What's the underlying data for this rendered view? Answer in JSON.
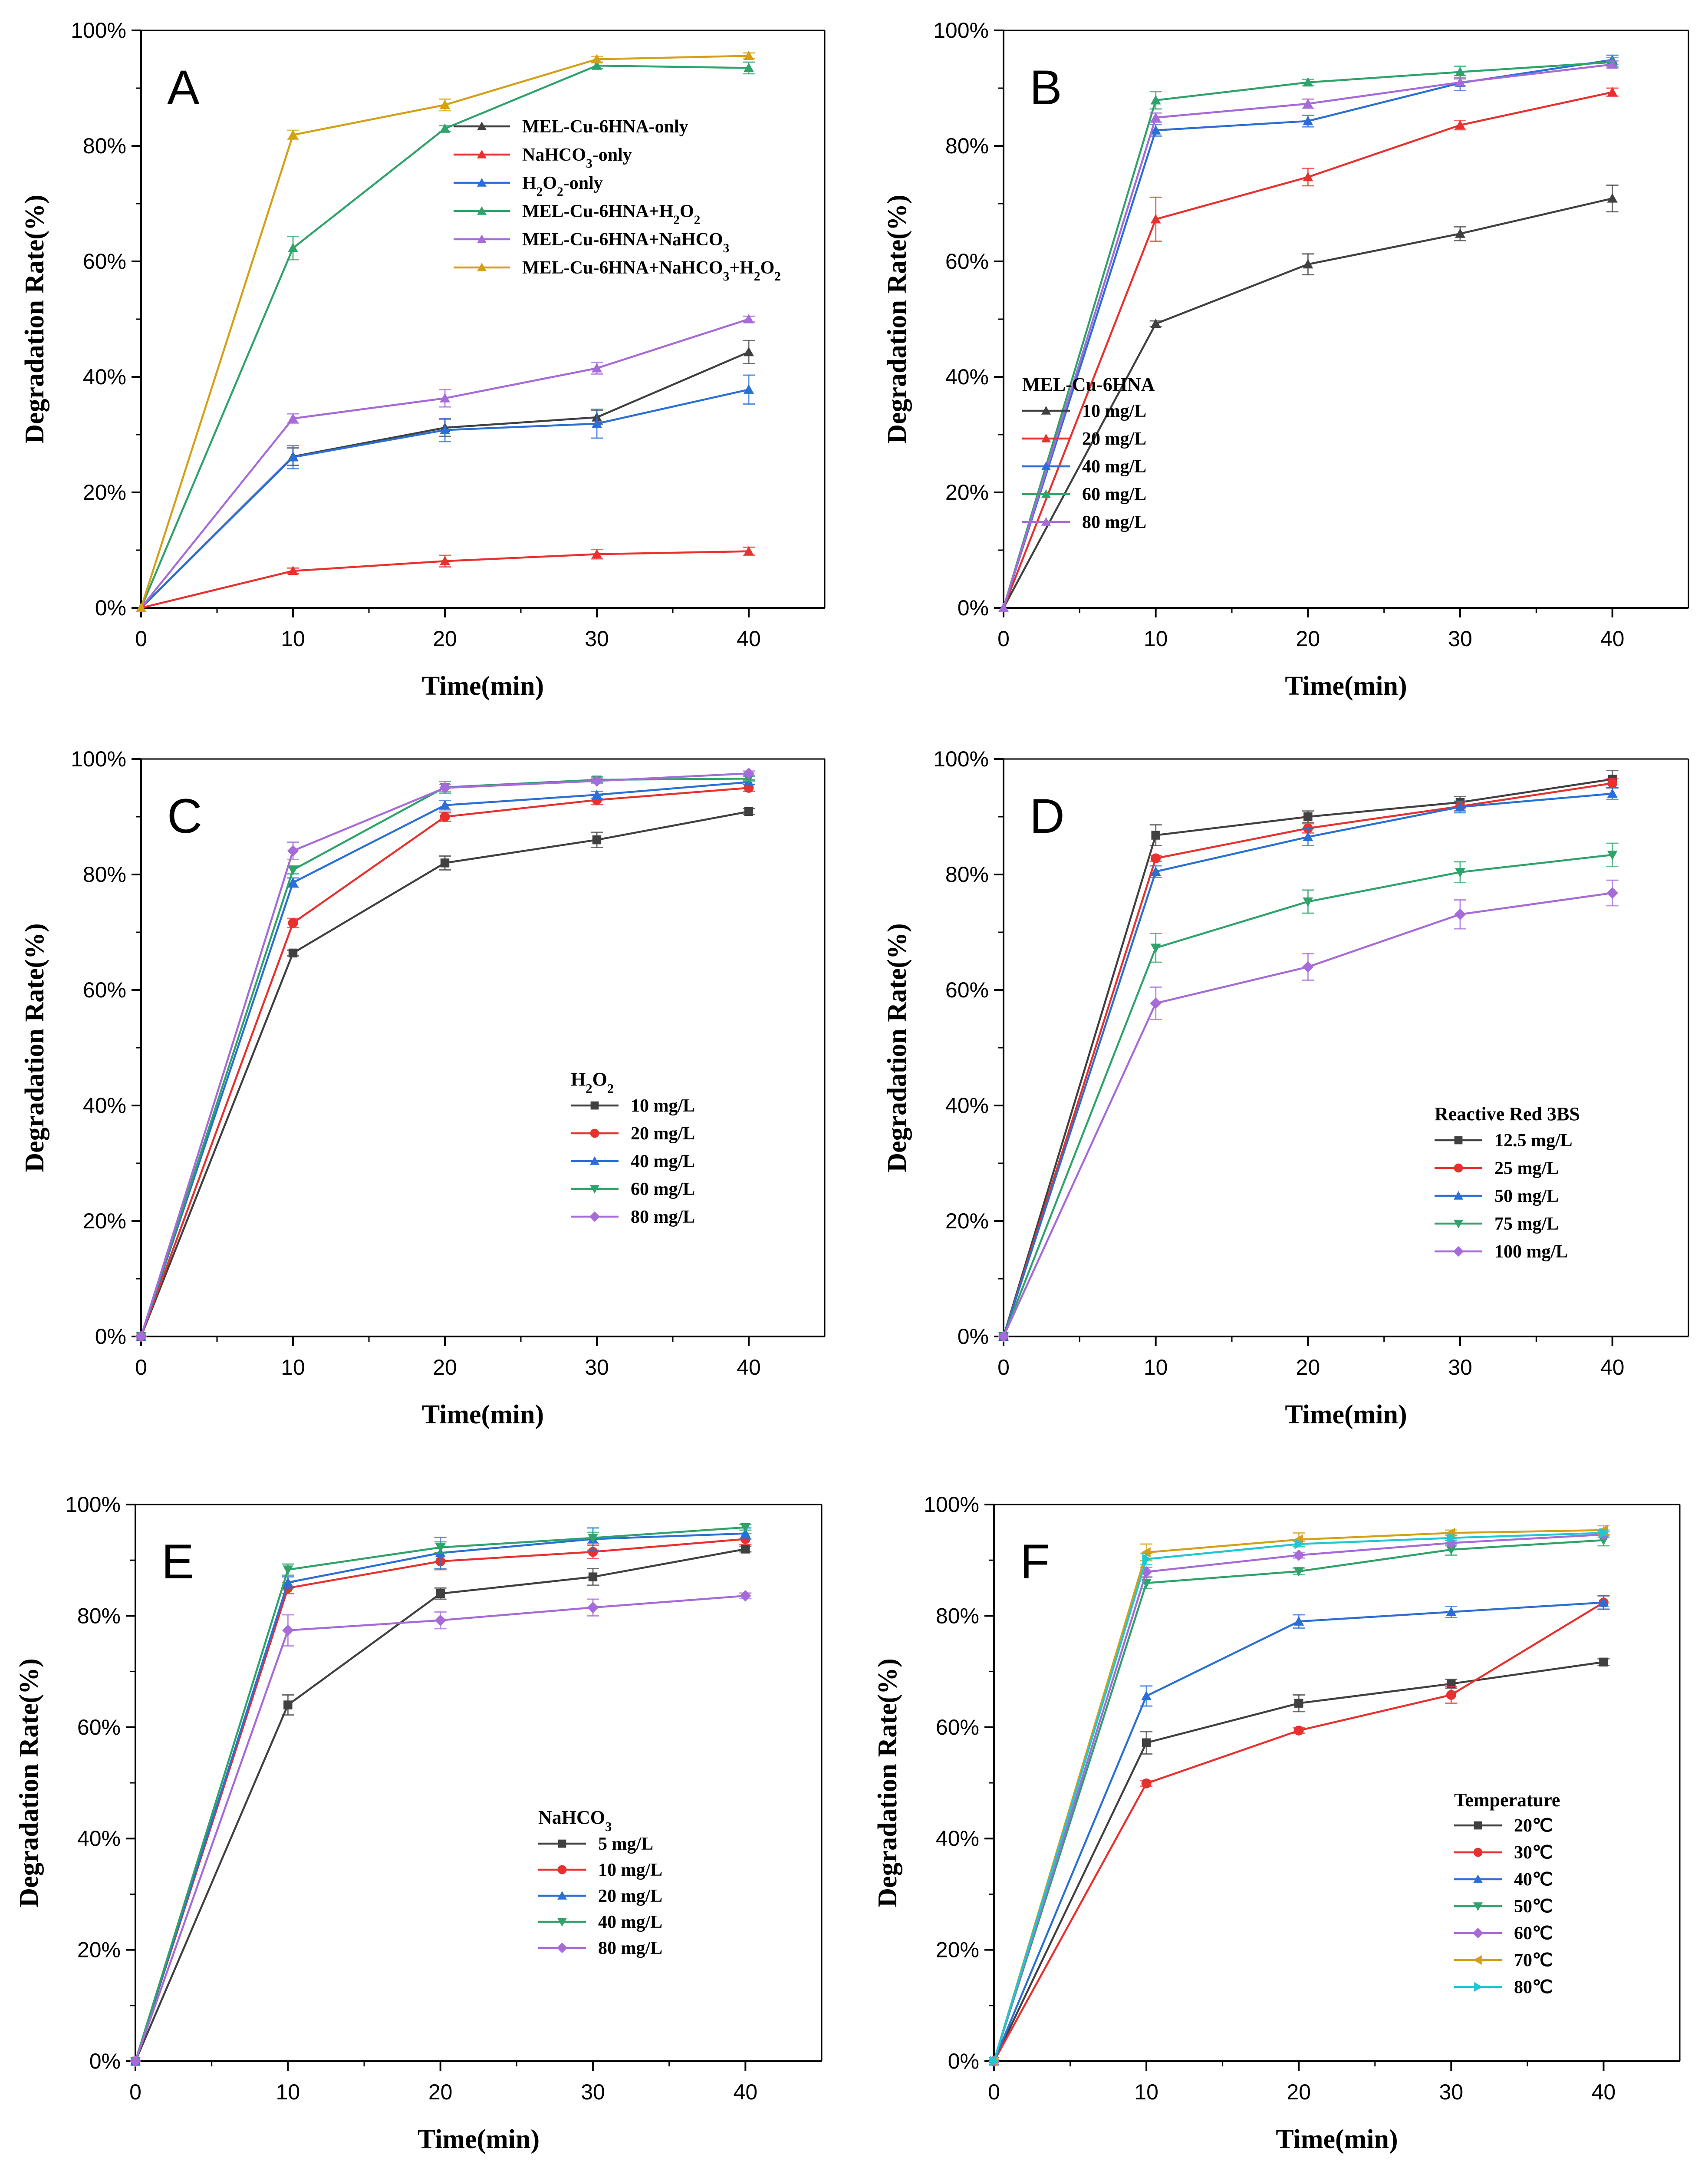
{
  "chart_data": [
    {
      "type": "line",
      "panel_label": "A",
      "xlabel": "Time(min)",
      "ylabel": "Degradation Rate(%)",
      "x": [
        0,
        10,
        20,
        30,
        40
      ],
      "xticks": [
        "0",
        "10",
        "20",
        "30",
        "40"
      ],
      "yticks": [
        "0%",
        "20%",
        "40%",
        "60%",
        "80%",
        "100%"
      ],
      "xlim": [
        0,
        45
      ],
      "ylim": [
        0,
        100
      ],
      "legend_title": "",
      "legend_position": "center-right",
      "series": [
        {
          "name": "MEL-Cu-6HNA-only",
          "name_parts": [
            "MEL-Cu-6HNA-only"
          ],
          "color": "#404040",
          "marker": "triangle-up",
          "values": [
            0,
            26.2,
            31.2,
            33.0,
            44.3
          ],
          "errors": [
            0,
            1.5,
            1.5,
            1.2,
            2.0
          ]
        },
        {
          "name": "NaHCO3-only",
          "name_parts": [
            "NaHCO",
            "3",
            "-only"
          ],
          "color": "#e8312e",
          "marker": "triangle-up",
          "values": [
            0,
            6.4,
            8.1,
            9.3,
            9.8
          ],
          "errors": [
            0,
            0.5,
            1.0,
            0.8,
            0.7
          ]
        },
        {
          "name": "H2O2-only",
          "name_parts": [
            "H",
            "2",
            "O",
            "2",
            "-only"
          ],
          "color": "#2a6fd6",
          "marker": "triangle-up",
          "values": [
            0,
            26.1,
            30.8,
            31.9,
            37.8
          ],
          "errors": [
            0,
            2.0,
            2.0,
            2.5,
            2.5
          ]
        },
        {
          "name": "MEL-Cu-6HNA+H2O2",
          "name_parts": [
            "MEL-Cu-6HNA+H",
            "2",
            "O",
            "2"
          ],
          "color": "#2ea36a",
          "marker": "triangle-up",
          "values": [
            0,
            62.3,
            83.0,
            93.9,
            93.5
          ],
          "errors": [
            0,
            2.0,
            0.5,
            0.5,
            1.0
          ]
        },
        {
          "name": "MEL-Cu-6HNA+NaHCO3",
          "name_parts": [
            "MEL-Cu-6HNA+NaHCO",
            "3"
          ],
          "color": "#a66ad9",
          "marker": "triangle-up",
          "values": [
            0,
            32.8,
            36.3,
            41.5,
            50.0
          ],
          "errors": [
            0,
            0.8,
            1.5,
            1.0,
            0.5
          ]
        },
        {
          "name": "MEL-Cu-6HNA+NaHCO3+H2O2",
          "name_parts": [
            "MEL-Cu-6HNA+NaHCO",
            "3",
            "+H",
            "2",
            "O",
            "2"
          ],
          "color": "#d4a017",
          "marker": "triangle-up",
          "values": [
            0,
            81.9,
            87.1,
            95.0,
            95.6
          ],
          "errors": [
            0,
            0.8,
            1.0,
            0.5,
            0.5
          ]
        }
      ]
    },
    {
      "type": "line",
      "panel_label": "B",
      "xlabel": "Time(min)",
      "ylabel": "Degradation Rate(%)",
      "x": [
        0,
        10,
        20,
        30,
        40
      ],
      "xticks": [
        "0",
        "10",
        "20",
        "30",
        "40"
      ],
      "yticks": [
        "0%",
        "20%",
        "40%",
        "60%",
        "80%",
        "100%"
      ],
      "xlim": [
        0,
        45
      ],
      "ylim": [
        0,
        100
      ],
      "legend_title": "MEL-Cu-6HNA",
      "legend_position": "center-right",
      "series": [
        {
          "name": "10 mg/L",
          "name_parts": [
            "10 mg/L"
          ],
          "color": "#404040",
          "marker": "triangle-up",
          "values": [
            0,
            49.2,
            59.5,
            64.8,
            70.9
          ],
          "errors": [
            0,
            0.5,
            1.8,
            1.2,
            2.3
          ]
        },
        {
          "name": "20 mg/L",
          "name_parts": [
            "20 mg/L"
          ],
          "color": "#e8312e",
          "marker": "triangle-up",
          "values": [
            0,
            67.3,
            74.6,
            83.6,
            89.3
          ],
          "errors": [
            0,
            3.8,
            1.5,
            0.8,
            0.7
          ]
        },
        {
          "name": "40 mg/L",
          "name_parts": [
            "40 mg/L"
          ],
          "color": "#2a6fd6",
          "marker": "triangle-up",
          "values": [
            0,
            82.7,
            84.3,
            90.9,
            94.9
          ],
          "errors": [
            0,
            1.0,
            1.0,
            1.3,
            0.8
          ]
        },
        {
          "name": "60 mg/L",
          "name_parts": [
            "60 mg/L"
          ],
          "color": "#2ea36a",
          "marker": "triangle-up",
          "values": [
            0,
            87.9,
            91.0,
            92.8,
            94.5
          ],
          "errors": [
            0,
            1.5,
            0.5,
            1.0,
            0.8
          ]
        },
        {
          "name": "80 mg/L",
          "name_parts": [
            "80 mg/L"
          ],
          "color": "#a66ad9",
          "marker": "triangle-up",
          "values": [
            0,
            84.9,
            87.3,
            91.0,
            94.1
          ],
          "errors": [
            0,
            0.8,
            0.8,
            0.6,
            0.6
          ]
        }
      ]
    },
    {
      "type": "line",
      "panel_label": "C",
      "xlabel": "Time(min)",
      "ylabel": "Degradation Rate(%)",
      "x": [
        0,
        10,
        20,
        30,
        40
      ],
      "xticks": [
        "0",
        "10",
        "20",
        "30",
        "40"
      ],
      "yticks": [
        "0%",
        "20%",
        "40%",
        "60%",
        "80%",
        "100%"
      ],
      "xlim": [
        0,
        45
      ],
      "ylim": [
        0,
        100
      ],
      "legend_title_parts": [
        "H",
        "2",
        "O",
        "2"
      ],
      "legend_title": "H2O2",
      "legend_position": "center-right",
      "series": [
        {
          "name": "10 mg/L",
          "name_parts": [
            "10 mg/L"
          ],
          "color": "#404040",
          "marker": "square",
          "values": [
            0,
            66.4,
            82.0,
            86.0,
            90.9
          ],
          "errors": [
            0,
            0.5,
            1.2,
            1.3,
            0.5
          ]
        },
        {
          "name": "20 mg/L",
          "name_parts": [
            "20 mg/L"
          ],
          "color": "#e8312e",
          "marker": "circle",
          "values": [
            0,
            71.6,
            90.0,
            92.9,
            95.0
          ],
          "errors": [
            0,
            0.8,
            0.8,
            0.8,
            0.6
          ]
        },
        {
          "name": "40 mg/L",
          "name_parts": [
            "40 mg/L"
          ],
          "color": "#2a6fd6",
          "marker": "triangle-up",
          "values": [
            0,
            78.6,
            92.0,
            93.8,
            96.0
          ],
          "errors": [
            0,
            0.8,
            0.8,
            0.6,
            0.4
          ]
        },
        {
          "name": "60 mg/L",
          "name_parts": [
            "60 mg/L"
          ],
          "color": "#2ea36a",
          "marker": "triangle-down",
          "values": [
            0,
            80.8,
            95.1,
            96.4,
            96.6
          ],
          "errors": [
            0,
            0.7,
            1.0,
            0.5,
            0.4
          ]
        },
        {
          "name": "80 mg/L",
          "name_parts": [
            "80 mg/L"
          ],
          "color": "#a66ad9",
          "marker": "diamond",
          "values": [
            0,
            84.1,
            95.0,
            96.2,
            97.5
          ],
          "errors": [
            0,
            1.5,
            0.6,
            0.4,
            0.4
          ]
        }
      ]
    },
    {
      "type": "line",
      "panel_label": "D",
      "xlabel": "Time(min)",
      "ylabel": "Degradation Rate(%)",
      "x": [
        0,
        10,
        20,
        30,
        40
      ],
      "xticks": [
        "0",
        "10",
        "20",
        "30",
        "40"
      ],
      "yticks": [
        "0%",
        "20%",
        "40%",
        "60%",
        "80%",
        "100%"
      ],
      "xlim": [
        0,
        45
      ],
      "ylim": [
        0,
        100
      ],
      "legend_title": "Reactive Red 3BS",
      "legend_position": "lower-right",
      "series": [
        {
          "name": "12.5 mg/L",
          "name_parts": [
            "12.5 mg/L"
          ],
          "color": "#404040",
          "marker": "square",
          "values": [
            0,
            86.8,
            90.0,
            92.5,
            96.5
          ],
          "errors": [
            0,
            1.8,
            1.0,
            1.0,
            1.5
          ]
        },
        {
          "name": "25 mg/L",
          "name_parts": [
            "25 mg/L"
          ],
          "color": "#e8312e",
          "marker": "circle",
          "values": [
            0,
            82.8,
            88.0,
            91.8,
            95.8
          ],
          "errors": [
            0,
            0.5,
            0.8,
            0.8,
            0.8
          ]
        },
        {
          "name": "50 mg/L",
          "name_parts": [
            "50 mg/L"
          ],
          "color": "#2a6fd6",
          "marker": "triangle-up",
          "values": [
            0,
            80.5,
            86.5,
            91.7,
            94.0
          ],
          "errors": [
            0,
            1.0,
            1.5,
            1.0,
            1.0
          ]
        },
        {
          "name": "75 mg/L",
          "name_parts": [
            "75 mg/L"
          ],
          "color": "#2ea36a",
          "marker": "triangle-down",
          "values": [
            0,
            67.3,
            75.3,
            80.4,
            83.4
          ],
          "errors": [
            0,
            2.5,
            2.0,
            1.8,
            2.0
          ]
        },
        {
          "name": "100 mg/L",
          "name_parts": [
            "100 mg/L"
          ],
          "color": "#a66ad9",
          "marker": "diamond",
          "values": [
            0,
            57.7,
            64.0,
            73.1,
            76.8
          ],
          "errors": [
            0,
            2.8,
            2.3,
            2.5,
            2.2
          ]
        }
      ]
    },
    {
      "type": "line",
      "panel_label": "E",
      "xlabel": "Time(min)",
      "ylabel": "Degradation Rate(%)",
      "x": [
        0,
        10,
        20,
        30,
        40
      ],
      "xticks": [
        "0",
        "10",
        "20",
        "30",
        "40"
      ],
      "yticks": [
        "0%",
        "20%",
        "40%",
        "60%",
        "80%",
        "100%"
      ],
      "xlim": [
        0,
        45
      ],
      "ylim": [
        0,
        100
      ],
      "legend_title_parts": [
        "NaHCO",
        "3"
      ],
      "legend_title": "NaHCO3",
      "legend_position": "center-right",
      "series": [
        {
          "name": "5 mg/L",
          "name_parts": [
            "5 mg/L"
          ],
          "color": "#404040",
          "marker": "square",
          "values": [
            0,
            64.0,
            84.0,
            87.0,
            92.0
          ],
          "errors": [
            0,
            1.8,
            1.0,
            1.5,
            0.5
          ]
        },
        {
          "name": "10 mg/L",
          "name_parts": [
            "10 mg/L"
          ],
          "color": "#e8312e",
          "marker": "circle",
          "values": [
            0,
            85.0,
            89.8,
            91.5,
            93.8
          ],
          "errors": [
            0,
            1.0,
            1.5,
            1.2,
            1.0
          ]
        },
        {
          "name": "20 mg/L",
          "name_parts": [
            "20 mg/L"
          ],
          "color": "#2a6fd6",
          "marker": "triangle-up",
          "values": [
            0,
            86.0,
            91.3,
            93.8,
            94.8
          ],
          "errors": [
            0,
            1.0,
            2.8,
            2.0,
            1.0
          ]
        },
        {
          "name": "40 mg/L",
          "name_parts": [
            "40 mg/L"
          ],
          "color": "#2ea36a",
          "marker": "triangle-down",
          "values": [
            0,
            88.3,
            92.3,
            94.0,
            95.9
          ],
          "errors": [
            0,
            1.0,
            1.0,
            1.0,
            0.5
          ]
        },
        {
          "name": "80 mg/L",
          "name_parts": [
            "80 mg/L"
          ],
          "color": "#a66ad9",
          "marker": "diamond",
          "values": [
            0,
            77.4,
            79.2,
            81.5,
            83.6
          ],
          "errors": [
            0,
            2.8,
            1.5,
            1.5,
            0.5
          ]
        }
      ]
    },
    {
      "type": "line",
      "panel_label": "F",
      "xlabel": "Time(min)",
      "ylabel": "Degradation Rate(%)",
      "x": [
        0,
        10,
        20,
        30,
        40
      ],
      "xticks": [
        "0",
        "10",
        "20",
        "30",
        "40"
      ],
      "yticks": [
        "0%",
        "20%",
        "40%",
        "60%",
        "80%",
        "100%"
      ],
      "xlim": [
        0,
        45
      ],
      "ylim": [
        0,
        100
      ],
      "legend_title": "Temperature",
      "legend_position": "lower-right",
      "series": [
        {
          "name": "20℃",
          "name_parts": [
            "20℃"
          ],
          "color": "#404040",
          "marker": "square",
          "values": [
            0,
            57.2,
            64.3,
            67.8,
            71.7
          ],
          "errors": [
            0,
            2.0,
            1.5,
            0.8,
            0.6
          ]
        },
        {
          "name": "30℃",
          "name_parts": [
            "30℃"
          ],
          "color": "#e8312e",
          "marker": "circle",
          "values": [
            0,
            49.9,
            59.4,
            65.8,
            82.4
          ],
          "errors": [
            0,
            0.5,
            0.5,
            1.5,
            1.2
          ]
        },
        {
          "name": "40℃",
          "name_parts": [
            "40℃"
          ],
          "color": "#2a6fd6",
          "marker": "triangle-up",
          "values": [
            0,
            65.6,
            79.0,
            80.7,
            82.4
          ],
          "errors": [
            0,
            1.8,
            1.2,
            1.0,
            1.2
          ]
        },
        {
          "name": "50℃",
          "name_parts": [
            "50℃"
          ],
          "color": "#2ea36a",
          "marker": "triangle-down",
          "values": [
            0,
            85.9,
            88.0,
            91.9,
            93.6
          ],
          "errors": [
            0,
            1.0,
            0.6,
            1.0,
            1.0
          ]
        },
        {
          "name": "60℃",
          "name_parts": [
            "60℃"
          ],
          "color": "#a66ad9",
          "marker": "diamond",
          "values": [
            0,
            87.9,
            90.9,
            93.1,
            94.6
          ],
          "errors": [
            0,
            0.8,
            0.5,
            0.5,
            0.5
          ]
        },
        {
          "name": "70℃",
          "name_parts": [
            "70℃"
          ],
          "color": "#d4a017",
          "marker": "triangle-left",
          "values": [
            0,
            91.4,
            93.7,
            94.9,
            95.4
          ],
          "errors": [
            0,
            1.5,
            1.2,
            0.5,
            0.8
          ]
        },
        {
          "name": "80℃",
          "name_parts": [
            "80℃"
          ],
          "color": "#1ec8d2",
          "marker": "triangle-right",
          "values": [
            0,
            90.2,
            92.9,
            94.0,
            94.9
          ],
          "errors": [
            0,
            1.0,
            0.5,
            0.5,
            0.5
          ]
        }
      ]
    }
  ]
}
